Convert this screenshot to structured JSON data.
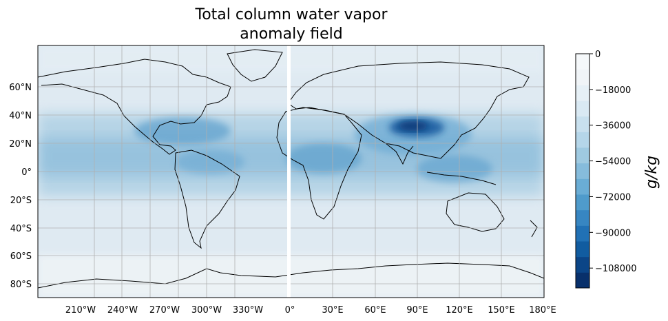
{
  "title": {
    "line1": "Total column water vapor",
    "line2": "anomaly field"
  },
  "colorbar": {
    "label": "g/kg",
    "ticks": [
      "0",
      "−18000",
      "−36000",
      "−54000",
      "−72000",
      "−90000",
      "−108000"
    ],
    "tick_values": [
      0,
      -18000,
      -36000,
      -54000,
      -72000,
      -90000,
      -108000
    ],
    "range": [
      -118000,
      0
    ],
    "colors": [
      "#08306b",
      "#0b4587",
      "#115ca0",
      "#2171b5",
      "#3786c2",
      "#4f9bcb",
      "#6aadd5",
      "#86bcdc",
      "#9fcae1",
      "#b5d6e9",
      "#c8e0ee",
      "#d9e9f3",
      "#e6f0f6",
      "#f0f4f7",
      "#f5f8fa"
    ]
  },
  "map": {
    "projection": "PlateCarree",
    "lon_ticks": [
      "210°W",
      "240°W",
      "270°W",
      "300°W",
      "330°W",
      "0°",
      "30°E",
      "60°E",
      "90°E",
      "120°E",
      "150°E",
      "180°E"
    ],
    "lat_ticks": [
      "60°N",
      "40°N",
      "20°N",
      "0°",
      "20°S",
      "40°S",
      "60°S",
      "80°S"
    ],
    "gridlines": true,
    "ocean_base_color": "#dfeaf2",
    "coast_color": "#000000"
  }
}
